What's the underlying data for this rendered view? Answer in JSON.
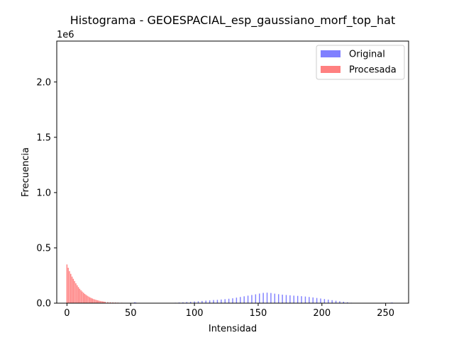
{
  "chart_data": {
    "type": "bar",
    "title": "Histograma - GEOESPACIAL_esp_gaussiano_morf_top_hat",
    "xlabel": "Intensidad",
    "ylabel": "Frecuencia",
    "y_offset_label": "1e6",
    "xlim": [
      -8,
      268
    ],
    "ylim": [
      0,
      2.37
    ],
    "x_ticks": [
      0,
      50,
      100,
      150,
      200,
      250
    ],
    "x_tick_labels": [
      "0",
      "50",
      "100",
      "150",
      "200",
      "250"
    ],
    "y_ticks": [
      0,
      0.5,
      1.0,
      1.5,
      2.0
    ],
    "y_tick_labels": [
      "0.0",
      "0.5",
      "1.0",
      "1.5",
      "2.0"
    ],
    "y_units": "millions",
    "grid": false,
    "legend_position": "upper right",
    "series": [
      {
        "name": "Original",
        "color": "#8080ff",
        "opacity": 0.5,
        "x": [
          52,
          53,
          54,
          85,
          88,
          91,
          94,
          97,
          100,
          103,
          106,
          109,
          112,
          115,
          118,
          121,
          124,
          127,
          130,
          133,
          136,
          139,
          142,
          145,
          148,
          151,
          154,
          157,
          160,
          163,
          166,
          169,
          172,
          175,
          178,
          181,
          184,
          187,
          190,
          193,
          196,
          199,
          202,
          205,
          208,
          211,
          214,
          217,
          220,
          223,
          254,
          255
        ],
        "values": [
          0.003,
          0.008,
          0.006,
          0.004,
          0.006,
          0.008,
          0.01,
          0.012,
          0.015,
          0.017,
          0.02,
          0.023,
          0.025,
          0.028,
          0.03,
          0.033,
          0.036,
          0.04,
          0.044,
          0.05,
          0.056,
          0.062,
          0.068,
          0.074,
          0.08,
          0.087,
          0.093,
          0.095,
          0.092,
          0.086,
          0.081,
          0.077,
          0.074,
          0.071,
          0.068,
          0.066,
          0.063,
          0.06,
          0.056,
          0.052,
          0.047,
          0.042,
          0.037,
          0.032,
          0.027,
          0.022,
          0.017,
          0.013,
          0.008,
          0.004,
          0.004,
          0.006
        ]
      },
      {
        "name": "Procesada",
        "color": "#ff8080",
        "opacity": 0.5,
        "x": [
          0,
          1,
          2,
          3,
          4,
          5,
          6,
          7,
          8,
          9,
          10,
          11,
          12,
          13,
          14,
          15,
          16,
          17,
          18,
          19,
          20,
          21,
          22,
          23,
          24,
          25,
          26,
          27,
          28,
          29,
          30,
          32,
          34,
          36,
          38,
          40,
          43,
          46,
          50,
          55
        ],
        "values": [
          0.35,
          0.32,
          0.29,
          0.265,
          0.24,
          0.22,
          0.2,
          0.18,
          0.162,
          0.145,
          0.13,
          0.117,
          0.105,
          0.094,
          0.084,
          0.075,
          0.067,
          0.06,
          0.053,
          0.047,
          0.042,
          0.037,
          0.033,
          0.029,
          0.026,
          0.023,
          0.02,
          0.018,
          0.016,
          0.014,
          0.012,
          0.01,
          0.008,
          0.007,
          0.006,
          0.005,
          0.004,
          0.003,
          0.002,
          0.001
        ]
      }
    ]
  }
}
